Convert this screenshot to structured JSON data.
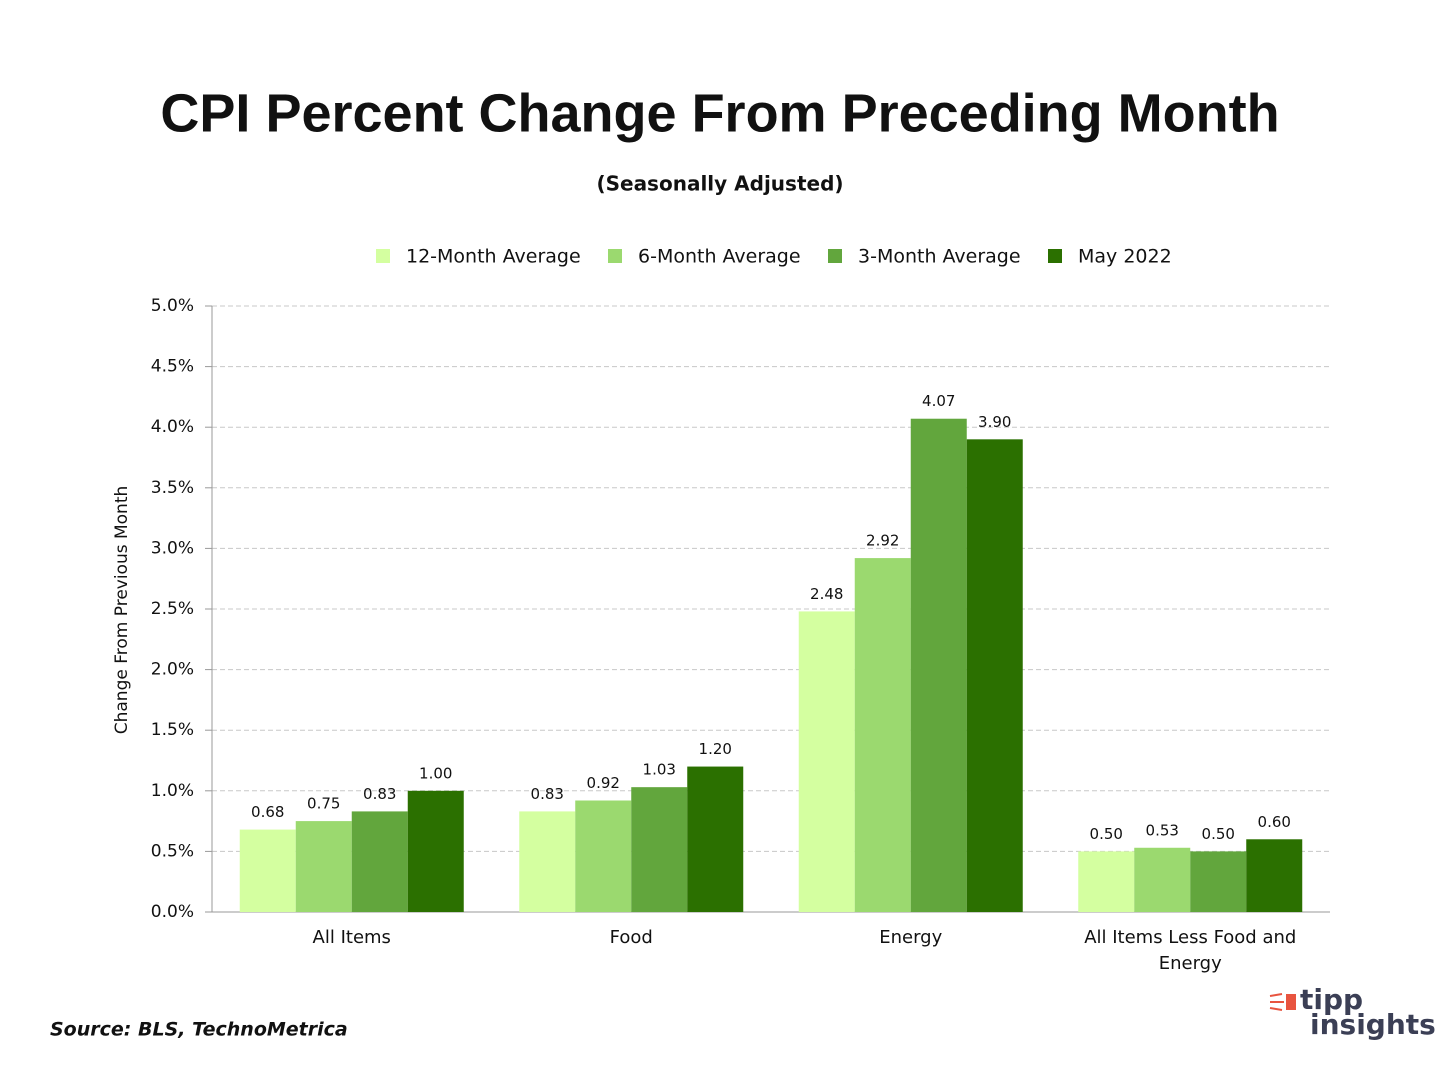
{
  "chart_data": {
    "type": "bar",
    "title": "CPI Percent Change From Preceding Month",
    "subtitle": "(Seasonally Adjusted)",
    "y_label": "Change From Previous Month",
    "source": "Source: BLS, TechnoMetrica",
    "logo": {
      "line1": "tipp",
      "line2": "insights"
    },
    "categories": [
      "All Items",
      "Food",
      "Energy",
      "All Items Less Food and Energy"
    ],
    "series": [
      {
        "name": "12-Month Average",
        "color": "#d4ffa0",
        "values": [
          0.68,
          0.83,
          2.48,
          0.5
        ],
        "value_labels": [
          "0.68",
          "0.83",
          "2.48",
          "0.50"
        ]
      },
      {
        "name": "6-Month Average",
        "color": "#9bd96f",
        "values": [
          0.75,
          0.92,
          2.92,
          0.53
        ],
        "value_labels": [
          "0.75",
          "0.92",
          "2.92",
          "0.53"
        ]
      },
      {
        "name": "3-Month Average",
        "color": "#62a63d",
        "values": [
          0.83,
          1.03,
          4.07,
          0.5
        ],
        "value_labels": [
          "0.83",
          "1.03",
          "4.07",
          "0.50"
        ]
      },
      {
        "name": "May 2022",
        "color": "#2b7000",
        "values": [
          1.0,
          1.2,
          3.9,
          0.6
        ],
        "value_labels": [
          "1.00",
          "1.20",
          "3.90",
          "0.60"
        ]
      }
    ],
    "ylim": [
      0,
      5
    ],
    "yticks": [
      {
        "value": 0,
        "label": "0.0%"
      },
      {
        "value": 0.5,
        "label": "0.5%"
      },
      {
        "value": 1,
        "label": "1.0%"
      },
      {
        "value": 1.5,
        "label": "1.5%"
      },
      {
        "value": 2,
        "label": "2.0%"
      },
      {
        "value": 2.5,
        "label": "2.5%"
      },
      {
        "value": 3,
        "label": "3.0%"
      },
      {
        "value": 3.5,
        "label": "3.5%"
      },
      {
        "value": 4,
        "label": "4.0%"
      },
      {
        "value": 4.5,
        "label": "4.5%"
      },
      {
        "value": 5,
        "label": "5.0%"
      }
    ],
    "grid": true,
    "legend": "top"
  }
}
